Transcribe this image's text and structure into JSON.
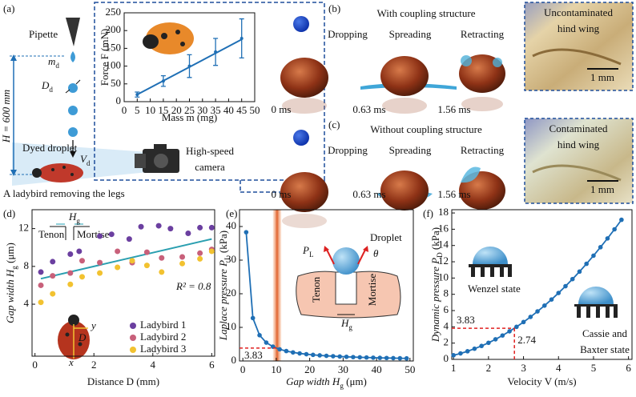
{
  "figure": {
    "a": {
      "label": "(a)",
      "pipette": "Pipette",
      "md": {
        "text": "m",
        "sub": "d"
      },
      "Dd": {
        "text": "D",
        "sub": "d"
      },
      "height": "H = 600 mm",
      "droplet": "Dyed droplet",
      "Vd": {
        "text": "V",
        "sub": "d"
      },
      "camera": [
        "High-speed",
        "camera"
      ],
      "caption": "A ladybird removing the legs"
    },
    "b": {
      "label": "(b)",
      "title": "With coupling structure",
      "stages": [
        "Dropping",
        "Spreading",
        "Retracting"
      ],
      "times": [
        "0 ms",
        "0.63 ms",
        "1.56 ms"
      ],
      "wing": [
        "Uncontaminated",
        "hind wing"
      ],
      "scale": "1 mm"
    },
    "c": {
      "label": "(c)",
      "title": "Without coupling structure",
      "stages": [
        "Dropping",
        "Spreading",
        "Retracting"
      ],
      "times": [
        "0 ms",
        "0.63 ms",
        "1.56 ms"
      ],
      "wing": [
        "Contaminated",
        "hind wing"
      ],
      "scale": "1 mm"
    },
    "d": {
      "label": "(d)",
      "Hg": {
        "text": "H",
        "sub": "g"
      },
      "tenon": "Tenon",
      "mortise": "Mortise",
      "D": "D",
      "x": "x",
      "y": "y"
    },
    "e": {
      "label": "(e)",
      "PL": {
        "text": "P",
        "sub": "L"
      },
      "droplet": "Droplet",
      "theta": "θ",
      "tenon": "Tenon",
      "mortise": "Mortise",
      "Hg": {
        "text": "H",
        "sub": "g"
      }
    },
    "f": {
      "label": "(f)",
      "wenzel": "Wenzel state",
      "cassie": [
        "Cassie and",
        "Baxter state"
      ]
    }
  },
  "chart_data": [
    {
      "type": "scatter",
      "xlabel": "Mass m (mg)",
      "ylabel": "Force F (mN)",
      "xlim": [
        0,
        50
      ],
      "ylim": [
        0,
        250
      ],
      "xticks": [
        0,
        5,
        10,
        15,
        20,
        25,
        30,
        35,
        40,
        45,
        50
      ],
      "yticks": [
        0,
        50,
        100,
        150,
        200,
        250
      ],
      "series": [
        {
          "color": "#1f6fb5",
          "x": [
            5,
            15,
            25,
            35,
            45
          ],
          "values": [
            20,
            58,
            100,
            140,
            178
          ],
          "errors": [
            7,
            15,
            32,
            38,
            55
          ]
        }
      ],
      "fit": {
        "x": [
          5,
          45
        ],
        "values": [
          20,
          175
        ]
      }
    },
    {
      "type": "scatter",
      "xlabel": "Distance D (mm)",
      "ylabel": {
        "text": "Gap width H",
        "sub": "g",
        "tail": " (μm)"
      },
      "xlim": [
        -0.1,
        6.1
      ],
      "ylim": [
        -1.5,
        14
      ],
      "xticks": [
        0,
        2,
        4,
        6
      ],
      "yticks": [
        4,
        8,
        12
      ],
      "legend": "lower right",
      "annotation": "R² = 0.8",
      "series": [
        {
          "name": "Ladybird 1",
          "color": "#6b3fa0",
          "x": [
            0.2,
            0.6,
            1.2,
            1.5,
            2.2,
            2.6,
            3.2,
            3.6,
            4.2,
            4.6,
            5.2,
            5.6,
            6
          ],
          "values": [
            7.4,
            8.5,
            9.3,
            9.6,
            11.2,
            11.4,
            10.9,
            12.2,
            12.3,
            12.0,
            11.5,
            12.1,
            12.1
          ]
        },
        {
          "name": "Ladybird 2",
          "color": "#c8607a",
          "x": [
            0.2,
            0.6,
            1.2,
            1.6,
            2.2,
            2.8,
            3.3,
            3.8,
            4.3,
            5.0,
            5.6,
            6
          ],
          "values": [
            6.0,
            7.0,
            7.3,
            8.6,
            8.4,
            9.6,
            8.4,
            9.5,
            8.9,
            9.0,
            9.4,
            9.8
          ]
        },
        {
          "name": "Ladybird 3",
          "color": "#f2c230",
          "x": [
            0.2,
            0.6,
            1.2,
            1.6,
            2.2,
            2.8,
            3.3,
            3.8,
            4.3,
            5.0,
            5.6,
            6
          ],
          "values": [
            4.2,
            5.1,
            6.1,
            6.9,
            7.3,
            7.9,
            8.6,
            8.1,
            7.4,
            8.3,
            8.8,
            9.6
          ]
        }
      ],
      "fit": {
        "x": [
          0.2,
          6
        ],
        "values": [
          6.7,
          10.9
        ]
      }
    },
    {
      "type": "line",
      "xlabel": {
        "text": "Gap width H",
        "sub": "g",
        "tail": " (μm)"
      },
      "ylabel": {
        "text": "Laplace pressure P",
        "sub": "L",
        "tail": " (kPa)"
      },
      "xlim": [
        -1,
        51
      ],
      "ylim": [
        0,
        45
      ],
      "xticks": [
        0,
        10,
        20,
        30,
        40,
        50
      ],
      "yticks": [
        0,
        10,
        20,
        30,
        40
      ],
      "series": [
        {
          "color": "#1f6fb5",
          "x": [
            1,
            3,
            5,
            7,
            9,
            11,
            13,
            15,
            17,
            19,
            21,
            23,
            25,
            27,
            29,
            31,
            33,
            35,
            37,
            39,
            41,
            43,
            45,
            47,
            49
          ],
          "values": [
            38.3,
            12.77,
            7.66,
            5.47,
            4.26,
            3.48,
            2.95,
            2.55,
            2.25,
            2.02,
            1.82,
            1.67,
            1.53,
            1.42,
            1.32,
            1.24,
            1.16,
            1.09,
            1.04,
            0.98,
            0.93,
            0.89,
            0.85,
            0.81,
            0.78
          ]
        }
      ],
      "band": [
        9,
        11.5
      ],
      "ref": {
        "y": 3.83
      }
    },
    {
      "type": "line",
      "xlabel": "Velocity V (m/s)",
      "ylabel": {
        "text": "Dynamic pressure P",
        "sub": "D",
        "tail": " (kPa)"
      },
      "xlim": [
        0.95,
        6.1
      ],
      "ylim": [
        0,
        18.4
      ],
      "xticks": [
        1,
        2,
        3,
        4,
        5,
        6
      ],
      "yticks": [
        0,
        2,
        4,
        6,
        8,
        10,
        12,
        14,
        16,
        18
      ],
      "series": [
        {
          "color": "#1f6fb5",
          "x": [
            1.0,
            1.2,
            1.4,
            1.6,
            1.8,
            2.0,
            2.2,
            2.4,
            2.6,
            2.8,
            3.0,
            3.2,
            3.4,
            3.6,
            3.8,
            4.0,
            4.2,
            4.4,
            4.6,
            4.8,
            5.0,
            5.2,
            5.4,
            5.6,
            5.8
          ],
          "values": [
            0.51,
            0.73,
            1.0,
            1.31,
            1.65,
            2.04,
            2.47,
            2.94,
            3.45,
            4.0,
            4.59,
            5.22,
            5.9,
            6.61,
            7.36,
            8.16,
            9.0,
            9.87,
            10.79,
            11.75,
            12.75,
            13.79,
            14.87,
            15.99,
            17.16
          ]
        }
      ],
      "ref": {
        "x": 2.74,
        "y": 3.83
      }
    }
  ]
}
